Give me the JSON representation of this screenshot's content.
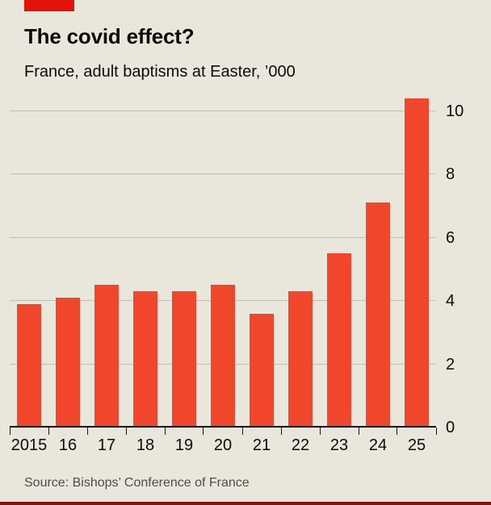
{
  "header": {
    "title": "The covid effect?",
    "subtitle": "France, adult baptisms at Easter, ’000"
  },
  "footer": {
    "source": "Source: Bishops’ Conference of France"
  },
  "colors": {
    "background": "#e9e6dc",
    "tag": "#e3120b",
    "bar": "#f0462c",
    "gridline": "#c2bfb3",
    "baseline": "#191713",
    "text": "#0c0c0c",
    "source_text": "#4e4e48",
    "bottom_rule": "#7c170e"
  },
  "chart_data": {
    "type": "bar",
    "title": "The covid effect?",
    "subtitle": "France, adult baptisms at Easter, ’000",
    "categories": [
      "2015",
      "16",
      "17",
      "18",
      "19",
      "20",
      "21",
      "22",
      "23",
      "24",
      "25"
    ],
    "values": [
      3.9,
      4.1,
      4.5,
      4.3,
      4.3,
      4.5,
      3.6,
      4.3,
      5.5,
      7.1,
      10.4
    ],
    "xlabel": "",
    "ylabel": "’000",
    "ylim": [
      0,
      10.5
    ],
    "yticks": [
      0,
      2,
      4,
      6,
      8,
      10
    ],
    "grid": true,
    "y_axis_side": "right",
    "legend": "none"
  }
}
